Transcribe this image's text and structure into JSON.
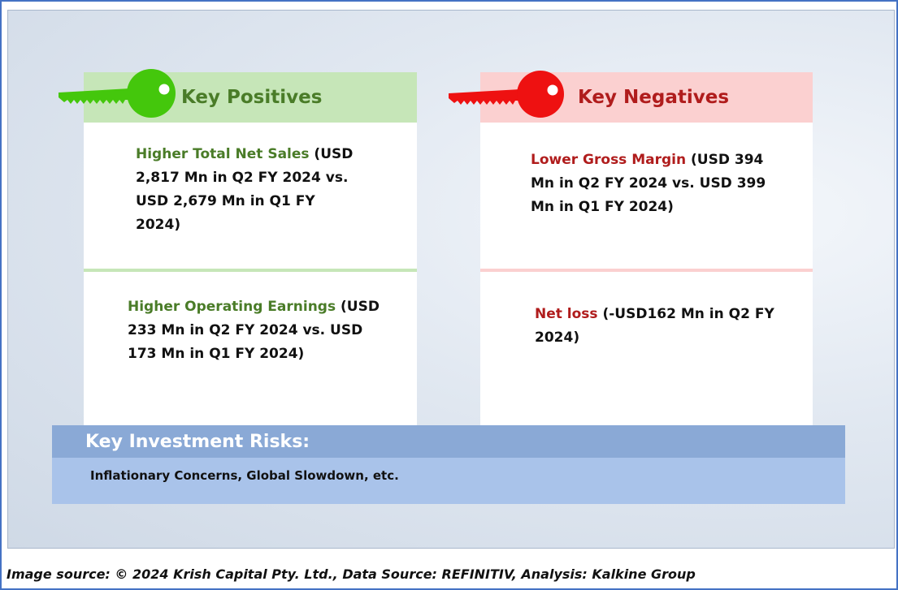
{
  "positives": {
    "title": "Key Positives",
    "items": [
      {
        "lead": "Higher Total Net Sales",
        "line1": " (USD",
        "line2": "2,817 Mn in Q2 FY 2024 vs.",
        "line3": "USD 2,679 Mn in Q1 FY",
        "line4": "2024)"
      },
      {
        "lead": "Higher Operating Earnings",
        "line1": " (USD",
        "line2": "233 Mn in Q2 FY 2024 vs. USD",
        "line3": "173 Mn in Q1 FY 2024)"
      }
    ]
  },
  "negatives": {
    "title": "Key Negatives",
    "items": [
      {
        "lead": "Lower Gross Margin",
        "line1": " (USD 394",
        "line2": "Mn in Q2 FY 2024 vs. USD 399",
        "line3": "Mn in Q1 FY 2024)"
      },
      {
        "lead": "Net loss",
        "line1": " (-USD162 Mn in Q2 FY",
        "line2": "2024)"
      }
    ]
  },
  "risks": {
    "title": "Key Investment Risks:",
    "text": "Inflationary Concerns, Global Slowdown, etc."
  },
  "footer": {
    "source": "Image source: © 2024 Krish Capital Pty. Ltd., Data Source: REFINITIV, Analysis: Kalkine Group"
  },
  "colors": {
    "positive": "#4a7c28",
    "positive_key": "#44c70c",
    "negative": "#b01c1c",
    "negative_key": "#ee1111",
    "risk_header": "#8aa9d6",
    "risk_body": "#a9c3ea"
  },
  "icons": {
    "positive": "green-key-icon",
    "negative": "red-key-icon"
  }
}
